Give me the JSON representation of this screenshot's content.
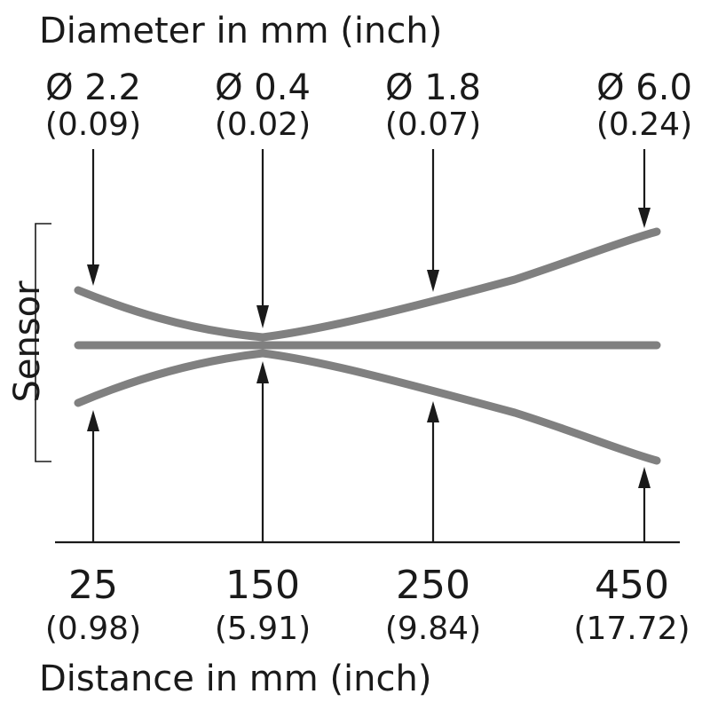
{
  "diagram": {
    "top_title": "Diameter in mm (inch)",
    "bottom_title": "Distance in mm (inch)",
    "side_label": "Sensor",
    "diameters": [
      {
        "mm": "Ø 2.2",
        "inch": "(0.09)"
      },
      {
        "mm": "Ø 0.4",
        "inch": "(0.02)"
      },
      {
        "mm": "Ø 1.8",
        "inch": "(0.07)"
      },
      {
        "mm": "Ø 6.0",
        "inch": "(0.24)"
      }
    ],
    "distances": [
      {
        "mm": "25",
        "inch": "(0.98)"
      },
      {
        "mm": "150",
        "inch": "(5.91)"
      },
      {
        "mm": "250",
        "inch": "(9.84)"
      },
      {
        "mm": "450",
        "inch": "(17.72)"
      }
    ],
    "colors": {
      "beam": "#808080",
      "text": "#1a1a1a",
      "background": "#ffffff"
    }
  }
}
